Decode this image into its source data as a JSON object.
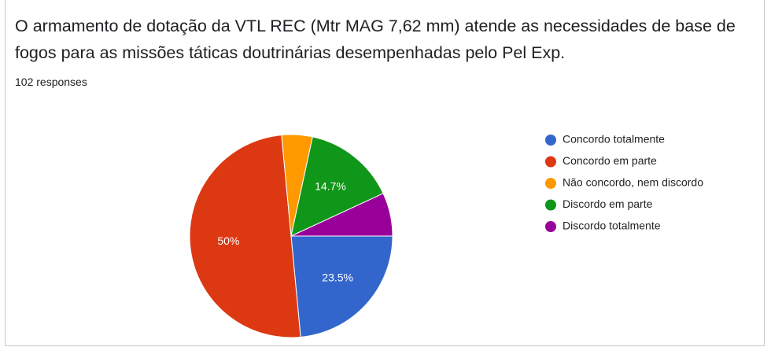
{
  "chart_data": {
    "type": "pie",
    "title": "O armamento de dotação da VTL REC (Mtr MAG 7,62 mm) atende as necessidades de base de fogos para as missões táticas doutrinárias desempenhadas pelo Pel Exp.",
    "subtitle": "102 responses",
    "categories": [
      "Concordo totalmente",
      "Concordo em parte",
      "Não concordo, nem discordo",
      "Discordo em parte",
      "Discordo totalmente"
    ],
    "values": [
      23.5,
      50,
      4.9,
      14.7,
      6.9
    ],
    "value_labels": [
      "23.5%",
      "50%",
      null,
      "14.7%",
      null
    ],
    "colors": [
      "#3366cc",
      "#dc3912",
      "#ff9900",
      "#109618",
      "#990099"
    ],
    "legend": "right"
  }
}
